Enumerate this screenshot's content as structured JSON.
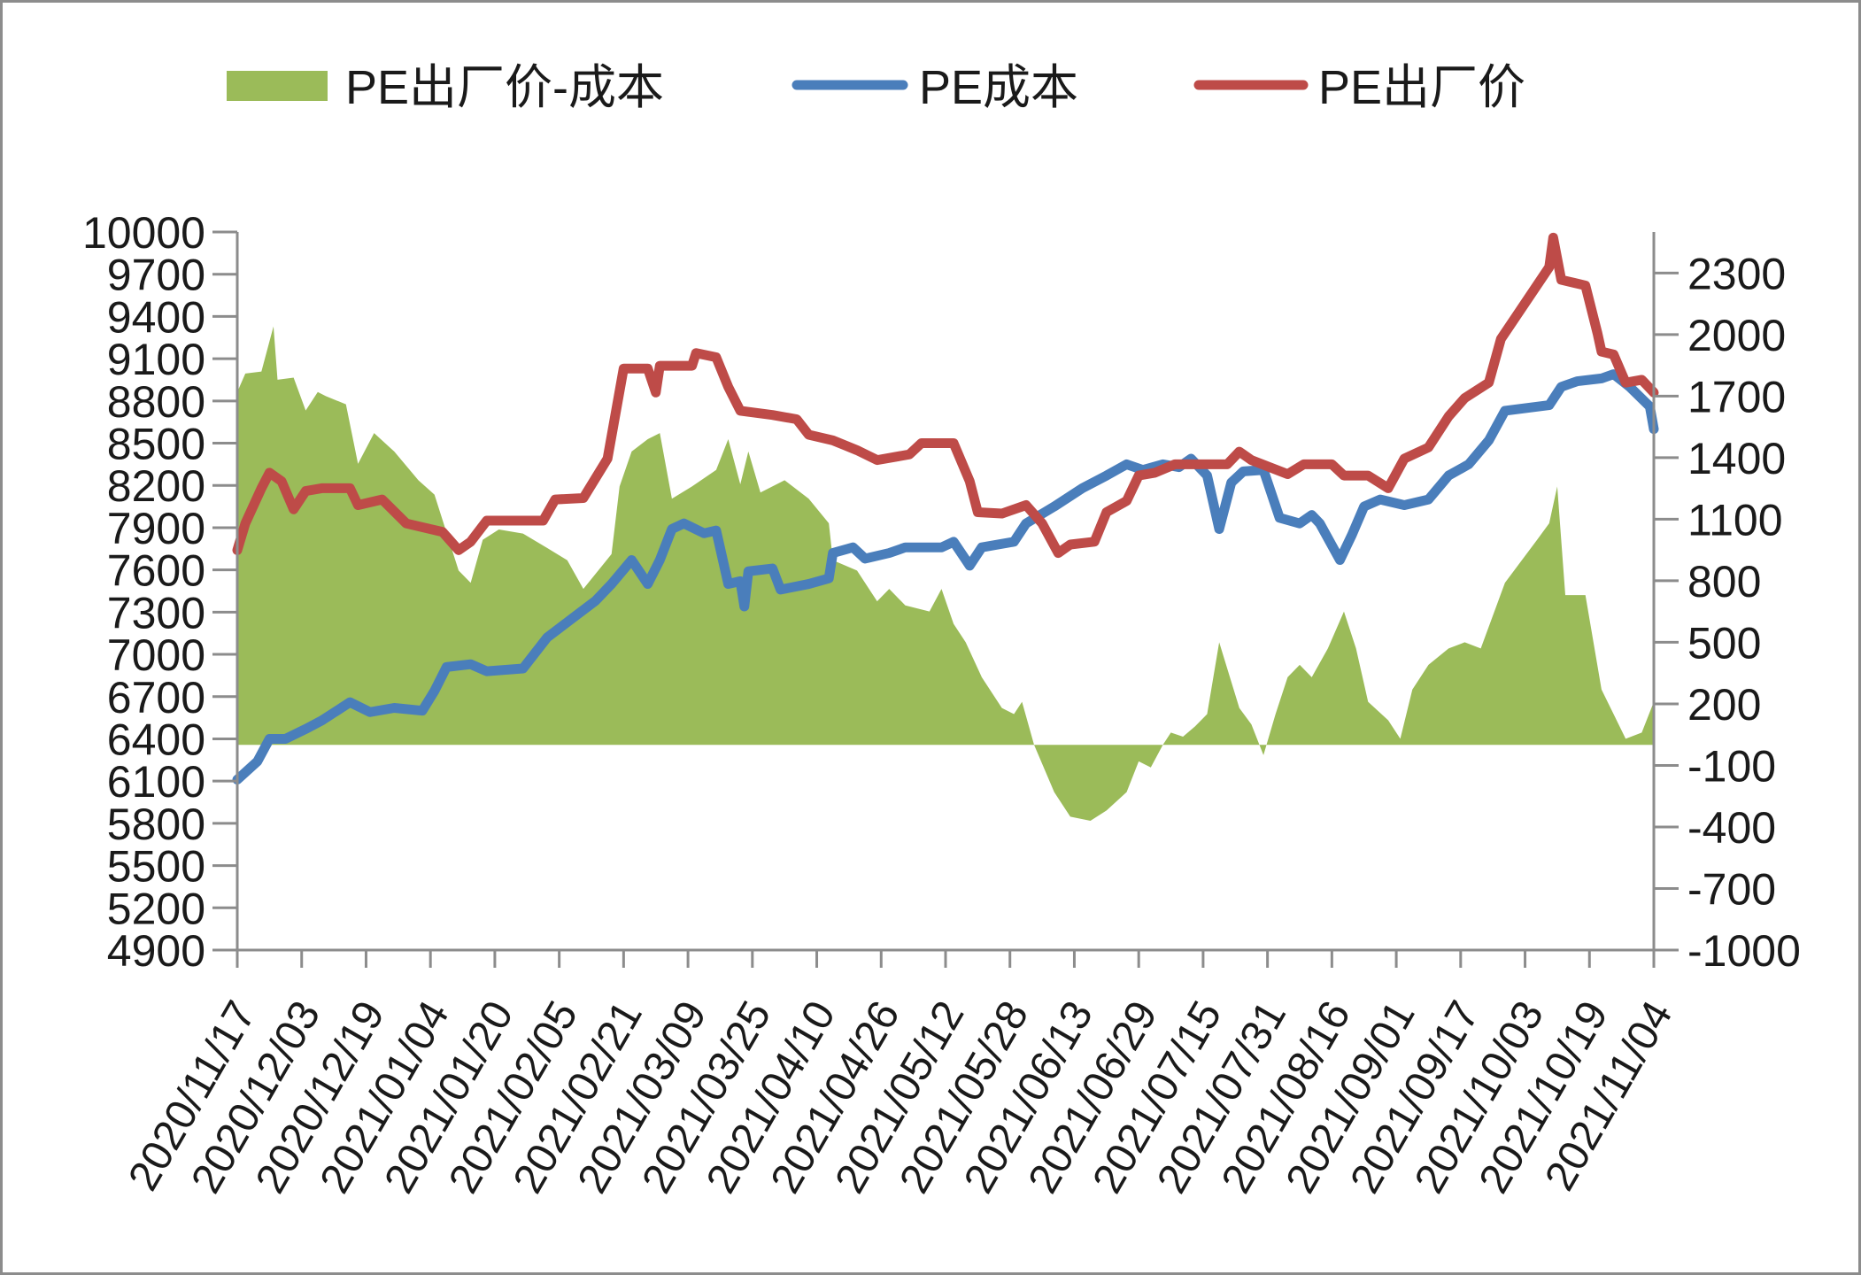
{
  "chart_data": {
    "type": "line",
    "title": "",
    "legend": {
      "placement": "top",
      "entries": [
        "PE出厂价-成本",
        "PE成本",
        "PE出厂价"
      ]
    },
    "x_unit": "days since 2020/11/17",
    "x_tick_labels": [
      "2020/11/17",
      "2020/12/03",
      "2020/12/19",
      "2021/01/04",
      "2021/01/20",
      "2021/02/05",
      "2021/02/21",
      "2021/03/09",
      "2021/03/25",
      "2021/04/10",
      "2021/04/26",
      "2021/05/12",
      "2021/05/28",
      "2021/06/13",
      "2021/06/29",
      "2021/07/15",
      "2021/07/31",
      "2021/08/16",
      "2021/09/01",
      "2021/09/17",
      "2021/10/03",
      "2021/10/19",
      "2021/11/04"
    ],
    "xlim": [
      0,
      352
    ],
    "y_left": {
      "ylim": [
        4900,
        10000
      ],
      "ticks": [
        "10000",
        "9700",
        "9400",
        "9100",
        "8800",
        "8500",
        "8200",
        "7900",
        "7600",
        "7300",
        "7000",
        "6700",
        "6400",
        "6100",
        "5800",
        "5500",
        "5200",
        "4900"
      ]
    },
    "y_right": {
      "ylim": [
        -1000,
        2500
      ],
      "ticks": [
        "2300",
        "2000",
        "1700",
        "1400",
        "1100",
        "800",
        "500",
        "200",
        "-100",
        "-400",
        "-700",
        "-1000"
      ]
    },
    "grid": false,
    "series": [
      {
        "name": "PE出厂价-成本",
        "type": "area",
        "axis": "right",
        "color": "#9bbb59",
        "x": [
          0,
          2,
          6,
          9,
          10,
          14,
          17,
          20,
          22,
          27,
          30,
          34,
          39,
          45,
          49,
          55,
          58,
          61,
          65,
          71,
          77,
          82,
          86,
          93,
          95,
          98,
          102,
          105,
          108,
          113,
          119,
          122,
          125,
          127,
          130,
          136,
          142,
          147,
          148,
          154,
          159,
          162,
          166,
          172,
          175,
          178,
          181,
          185,
          190,
          193,
          195,
          198,
          203,
          207,
          212,
          216,
          221,
          224,
          227,
          230,
          232,
          235,
          238,
          241,
          244,
          249,
          252,
          255,
          258,
          261,
          264,
          267,
          271,
          275,
          278,
          281,
          286,
          289,
          292,
          296,
          301,
          305,
          309,
          315,
          323,
          326,
          328,
          330,
          335,
          339,
          342,
          345,
          349,
          352
        ],
        "y": [
          1720,
          1810,
          1820,
          2040,
          1780,
          1790,
          1630,
          1720,
          1700,
          1660,
          1370,
          1520,
          1430,
          1290,
          1220,
          850,
          790,
          1000,
          1050,
          1030,
          960,
          900,
          760,
          930,
          1260,
          1430,
          1490,
          1520,
          1200,
          1260,
          1340,
          1490,
          1270,
          1430,
          1230,
          1290,
          1200,
          1080,
          900,
          850,
          700,
          760,
          680,
          650,
          760,
          590,
          500,
          330,
          180,
          150,
          210,
          0,
          -230,
          -350,
          -370,
          -320,
          -230,
          -80,
          -110,
          0,
          60,
          40,
          90,
          150,
          500,
          180,
          100,
          -50,
          150,
          330,
          390,
          330,
          470,
          650,
          470,
          210,
          120,
          30,
          270,
          390,
          470,
          500,
          470,
          790,
          1000,
          1080,
          1260,
          730,
          730,
          270,
          150,
          30,
          60,
          210
        ]
      },
      {
        "name": "PE成本",
        "type": "line",
        "axis": "left",
        "color": "#4a7ebb",
        "x": [
          0,
          5,
          8,
          12,
          17,
          21,
          28,
          33,
          39,
          46,
          49,
          52,
          58,
          62,
          71,
          77,
          83,
          89,
          93,
          98,
          102,
          105,
          108,
          111,
          116,
          119,
          122,
          125,
          126,
          127,
          133,
          135,
          142,
          147,
          148,
          153,
          156,
          162,
          166,
          175,
          178,
          182,
          185,
          193,
          196,
          203,
          210,
          216,
          221,
          225,
          230,
          234,
          237,
          241,
          244,
          247,
          250,
          255,
          259,
          264,
          267,
          269,
          274,
          277,
          280,
          284,
          290,
          296,
          301,
          306,
          311,
          315,
          326,
          329,
          333,
          339,
          342,
          346,
          351,
          352
        ],
        "y": [
          6110,
          6240,
          6400,
          6400,
          6470,
          6530,
          6660,
          6590,
          6620,
          6600,
          6740,
          6910,
          6930,
          6880,
          6900,
          7120,
          7250,
          7380,
          7500,
          7670,
          7500,
          7670,
          7890,
          7930,
          7860,
          7880,
          7500,
          7520,
          7340,
          7590,
          7610,
          7460,
          7500,
          7540,
          7720,
          7760,
          7680,
          7720,
          7760,
          7760,
          7800,
          7630,
          7760,
          7800,
          7930,
          8050,
          8180,
          8270,
          8350,
          8310,
          8350,
          8330,
          8390,
          8270,
          7890,
          8220,
          8300,
          8310,
          7970,
          7930,
          7990,
          7930,
          7670,
          7850,
          8050,
          8100,
          8060,
          8100,
          8270,
          8350,
          8520,
          8730,
          8770,
          8900,
          8940,
          8960,
          8990,
          8900,
          8760,
          8600
        ]
      },
      {
        "name": "PE出厂价",
        "type": "line",
        "axis": "left",
        "color": "#be4b48",
        "x": [
          0,
          2,
          6,
          8,
          11,
          14,
          17,
          21,
          28,
          30,
          36,
          42,
          51,
          55,
          58,
          62,
          76,
          79,
          86,
          92,
          96,
          102,
          104,
          105,
          113,
          114,
          119,
          122,
          125,
          133,
          139,
          142,
          148,
          154,
          159,
          167,
          170,
          178,
          182,
          184,
          190,
          196,
          200,
          204,
          207,
          213,
          216,
          221,
          224,
          228,
          233,
          246,
          249,
          252,
          261,
          265,
          272,
          275,
          281,
          286,
          290,
          296,
          301,
          305,
          311,
          314,
          318,
          326,
          327,
          329,
          335,
          338,
          339,
          342,
          345,
          349,
          352
        ],
        "y": [
          7740,
          7930,
          8180,
          8290,
          8230,
          8030,
          8160,
          8180,
          8180,
          8060,
          8100,
          7930,
          7870,
          7740,
          7800,
          7950,
          7950,
          8100,
          8110,
          8390,
          9030,
          9030,
          8860,
          9050,
          9050,
          9140,
          9110,
          8900,
          8730,
          8700,
          8670,
          8560,
          8520,
          8450,
          8380,
          8420,
          8500,
          8500,
          8230,
          8010,
          8000,
          8060,
          7930,
          7720,
          7780,
          7800,
          8010,
          8090,
          8270,
          8290,
          8350,
          8350,
          8440,
          8380,
          8280,
          8350,
          8350,
          8270,
          8270,
          8180,
          8390,
          8470,
          8690,
          8820,
          8930,
          9240,
          9410,
          9750,
          9960,
          9660,
          9620,
          9280,
          9150,
          9130,
          8930,
          8950,
          8860
        ]
      }
    ]
  }
}
